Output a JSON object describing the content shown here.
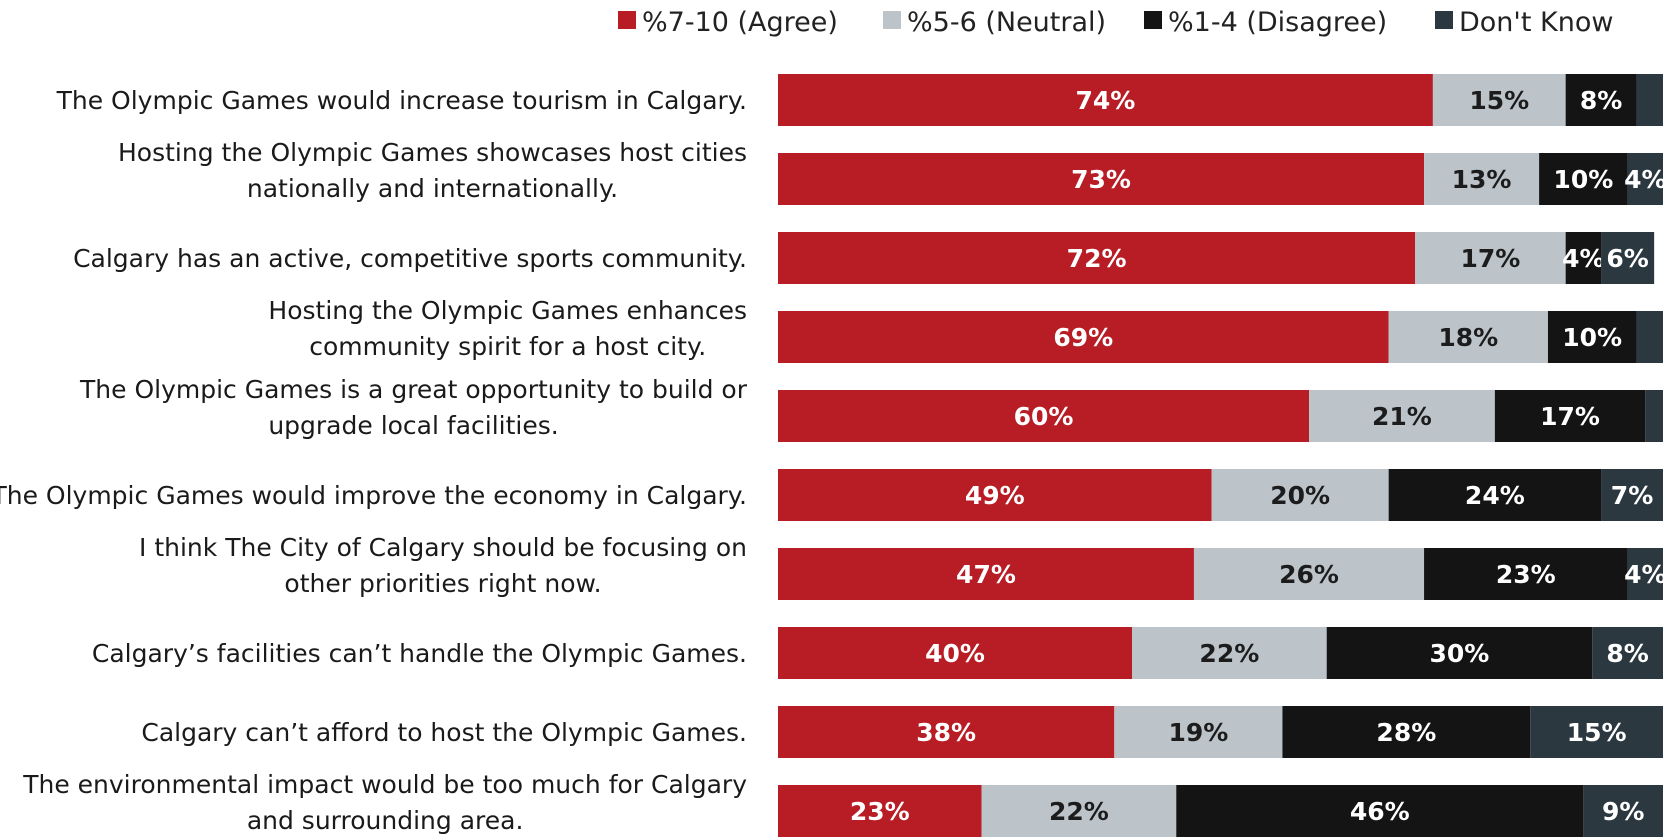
{
  "chart_data": {
    "type": "bar",
    "orientation": "horizontal",
    "stacked": true,
    "legend_position": "top-right",
    "grid": false,
    "xlim": [
      0,
      100
    ],
    "categories": [
      [
        "The Olympic Games would increase tourism in Calgary."
      ],
      [
        "Hosting the Olympic Games showcases host cities",
        "nationally and internationally."
      ],
      [
        "Calgary has an active, competitive sports community."
      ],
      [
        "Hosting the Olympic Games enhances",
        "community spirit for a host city."
      ],
      [
        "The Olympic Games is a great opportunity to build or",
        "upgrade local facilities."
      ],
      [
        "The Olympic Games would improve the economy in Calgary."
      ],
      [
        "I think The City of Calgary should be focusing on",
        "other priorities right now."
      ],
      [
        "Calgary’s facilities can’t handle the Olympic Games."
      ],
      [
        "Calgary can’t afford to host the Olympic Games."
      ],
      [
        "The environmental impact would be too much for Calgary",
        "and surrounding area."
      ]
    ],
    "series": [
      {
        "name": "%7-10 (Agree)",
        "color": "#b81c24",
        "label_color": "#ffffff",
        "values": [
          74,
          73,
          72,
          69,
          60,
          49,
          47,
          40,
          38,
          23
        ],
        "labels": [
          "74%",
          "73%",
          "72%",
          "69%",
          "60%",
          "49%",
          "47%",
          "40%",
          "38%",
          "23%"
        ]
      },
      {
        "name": "%5-6 (Neutral)",
        "color": "#bcc4ca",
        "label_color": "#1c1c1c",
        "values": [
          15,
          13,
          17,
          18,
          21,
          20,
          26,
          22,
          19,
          22
        ],
        "labels": [
          "15%",
          "13%",
          "17%",
          "18%",
          "21%",
          "20%",
          "26%",
          "22%",
          "19%",
          "22%"
        ]
      },
      {
        "name": "%1-4 (Disagree)",
        "color": "#141414",
        "label_color": "#ffffff",
        "values": [
          8,
          10,
          4,
          10,
          17,
          24,
          23,
          30,
          28,
          46
        ],
        "labels": [
          "8%",
          "10%",
          "4%",
          "10%",
          "17%",
          "24%",
          "23%",
          "30%",
          "28%",
          "46%"
        ]
      },
      {
        "name": "Don't Know",
        "color": "#2c3840",
        "label_color": "#ffffff",
        "values": [
          3,
          4,
          6,
          3,
          2,
          7,
          4,
          8,
          15,
          9
        ],
        "labels": [
          "",
          "4%",
          "6%",
          "",
          "",
          "7%",
          "4%",
          "8%",
          "15%",
          "9%"
        ]
      }
    ]
  }
}
